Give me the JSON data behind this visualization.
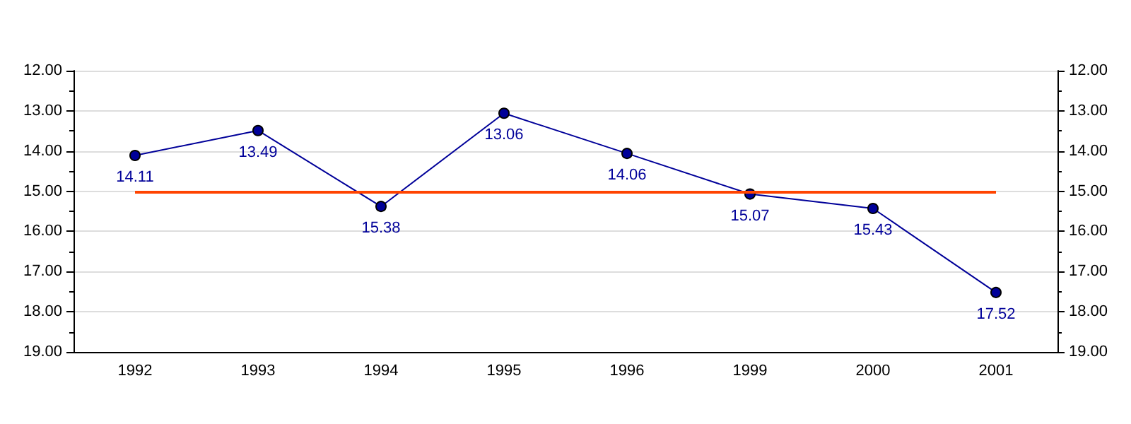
{
  "chart_data": {
    "type": "line",
    "categories": [
      "1992",
      "1993",
      "1994",
      "1995",
      "1996",
      "1999",
      "2000",
      "2001"
    ],
    "series": [
      {
        "color": "#000099",
        "values": [
          14.11,
          13.49,
          15.38,
          13.06,
          14.06,
          15.07,
          15.43,
          17.52
        ]
      }
    ],
    "ylim": [
      19,
      12
    ],
    "yticks": [
      {
        "value": 12,
        "label": "12.00"
      },
      {
        "value": 13,
        "label": "13.00"
      },
      {
        "value": 14,
        "label": "14.00"
      },
      {
        "value": 15,
        "label": "15.00"
      },
      {
        "value": 16,
        "label": "16.00"
      },
      {
        "value": 17,
        "label": "17.00"
      },
      {
        "value": 18,
        "label": "18.00"
      },
      {
        "value": 19,
        "label": "19.00"
      }
    ],
    "y2lim": [
      19,
      12
    ],
    "y2ticks": [
      {
        "value": 12,
        "label": "12.00"
      },
      {
        "value": 13,
        "label": "13.00"
      },
      {
        "value": 14,
        "label": "14.00"
      },
      {
        "value": 15,
        "label": "15.00"
      },
      {
        "value": 16,
        "label": "16.00"
      },
      {
        "value": 17,
        "label": "17.00"
      },
      {
        "value": 18,
        "label": "18.00"
      },
      {
        "value": 19,
        "label": "19.00"
      }
    ],
    "ref_lines": [
      {
        "axis": "y",
        "value": 15,
        "color": "#ff4400"
      }
    ],
    "grid": "y",
    "marker": "circle",
    "line_style": "solid",
    "data_labels": true
  }
}
